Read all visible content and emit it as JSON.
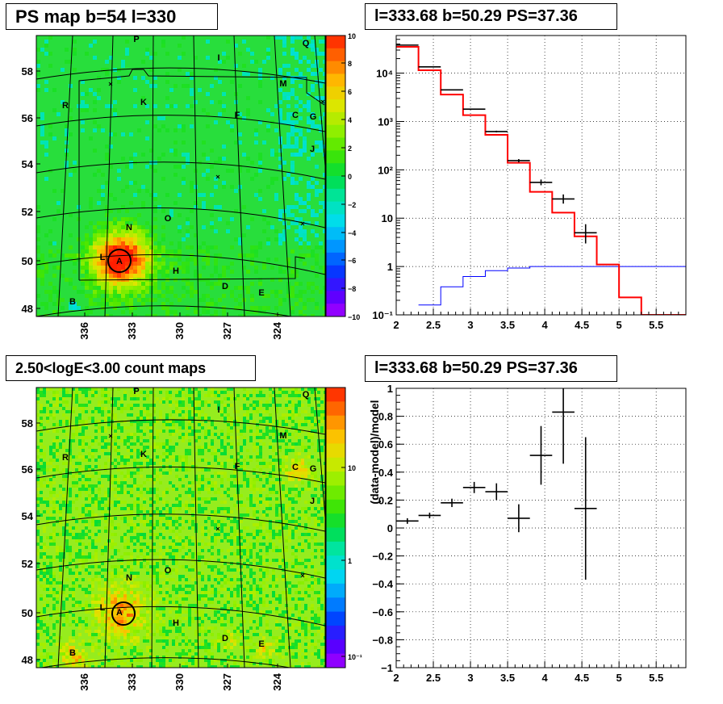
{
  "panels": {
    "ps_map": {
      "title": "PS map b=54 l=330"
    },
    "count_map": {
      "title": "2.50<logE<3.00 count maps"
    },
    "spectrum": {
      "title": "l=333.68 b=50.29 PS=37.36"
    },
    "residual": {
      "title": "l=333.68 b=50.29 PS=37.36"
    }
  },
  "chart_data": [
    {
      "type": "heatmap",
      "name": "ps_map",
      "title": "PS map b=54 l=330",
      "x_ticks": [
        "336",
        "333",
        "330",
        "327",
        "324"
      ],
      "y_ticks": [
        "48",
        "50",
        "52",
        "54",
        "56",
        "58"
      ],
      "colorbar": {
        "min": -10,
        "max": 10,
        "ticks": [
          "10",
          "8",
          "6",
          "4",
          "2",
          "0",
          "−2",
          "−4",
          "−6",
          "−8",
          "−10"
        ]
      },
      "sources": [
        {
          "label": "P"
        },
        {
          "label": "Q"
        },
        {
          "label": "I"
        },
        {
          "label": "M"
        },
        {
          "label": "R"
        },
        {
          "label": "K"
        },
        {
          "label": "F"
        },
        {
          "label": "C"
        },
        {
          "label": "G"
        },
        {
          "label": "J"
        },
        {
          "label": "N"
        },
        {
          "label": "O"
        },
        {
          "label": "L"
        },
        {
          "label": "A"
        },
        {
          "label": "H"
        },
        {
          "label": "D"
        },
        {
          "label": "E"
        },
        {
          "label": "B"
        }
      ]
    },
    {
      "type": "heatmap",
      "name": "count_map",
      "title": "2.50<logE<3.00 count maps",
      "x_ticks": [
        "336",
        "333",
        "330",
        "327",
        "324"
      ],
      "y_ticks": [
        "48",
        "50",
        "52",
        "54",
        "56",
        "58"
      ],
      "colorbar": {
        "scale": "log",
        "ticks": [
          "10",
          "1",
          "10⁻¹"
        ]
      },
      "sources": [
        {
          "label": "P"
        },
        {
          "label": "Q"
        },
        {
          "label": "I"
        },
        {
          "label": "M"
        },
        {
          "label": "R"
        },
        {
          "label": "K"
        },
        {
          "label": "F"
        },
        {
          "label": "C"
        },
        {
          "label": "G"
        },
        {
          "label": "J"
        },
        {
          "label": "N"
        },
        {
          "label": "O"
        },
        {
          "label": "L"
        },
        {
          "label": "A"
        },
        {
          "label": "H"
        },
        {
          "label": "D"
        },
        {
          "label": "E"
        },
        {
          "label": "B"
        }
      ]
    },
    {
      "type": "line",
      "name": "spectrum",
      "title": "l=333.68 b=50.29 PS=37.36",
      "xlim": [
        2,
        5.9
      ],
      "ylim": [
        0.1,
        60000
      ],
      "yscale": "log",
      "x_ticks": [
        "2",
        "2.5",
        "3",
        "3.5",
        "4",
        "4.5",
        "5",
        "5.5"
      ],
      "y_ticks": [
        "10⁻¹",
        "1",
        "10",
        "10²",
        "10³",
        "10⁴"
      ],
      "grid": true,
      "data": {
        "x": [
          2.15,
          2.45,
          2.75,
          3.05,
          3.35,
          3.65,
          3.95,
          4.25,
          4.55
        ],
        "y": [
          38000,
          13500,
          4500,
          1800,
          620,
          155,
          55,
          25,
          5
        ],
        "yerr_low": [
          200,
          120,
          70,
          45,
          25,
          12,
          7,
          5,
          2
        ],
        "yerr_high": [
          200,
          120,
          70,
          45,
          25,
          12,
          8,
          6,
          2.5
        ],
        "xerr": 0.15
      },
      "model_red": {
        "edges": [
          2,
          2.3,
          2.6,
          2.9,
          3.2,
          3.5,
          3.8,
          4.1,
          4.4,
          4.7,
          5.0,
          5.3,
          5.9
        ],
        "values": [
          35000,
          11500,
          3600,
          1350,
          530,
          140,
          35,
          13,
          4.2,
          1.1,
          0.23,
          0.09
        ]
      },
      "model_blue": {
        "edges": [
          2.3,
          2.6,
          2.9,
          3.2,
          3.5,
          3.8,
          4.1,
          4.4,
          4.7,
          5.0,
          5.3,
          5.9
        ],
        "values": [
          0.16,
          0.38,
          0.62,
          0.82,
          0.93,
          1.0,
          1.0,
          1.0,
          1.0,
          1.0,
          1.0
        ]
      }
    },
    {
      "type": "scatter",
      "name": "residual",
      "title": "l=333.68 b=50.29 PS=37.36",
      "ylabel": "(data-model)/model",
      "xlim": [
        2,
        5.9
      ],
      "ylim": [
        -1,
        1
      ],
      "x_ticks": [
        "2",
        "2.5",
        "3",
        "3.5",
        "4",
        "4.5",
        "5",
        "5.5"
      ],
      "y_ticks": [
        "−1",
        "−0.8",
        "−0.6",
        "−0.4",
        "−0.2",
        "0",
        "0.2",
        "0.4",
        "0.6",
        "0.8",
        "1"
      ],
      "grid": true,
      "x": [
        2.15,
        2.45,
        2.75,
        3.05,
        3.35,
        3.65,
        3.95,
        4.25,
        4.55
      ],
      "y": [
        0.05,
        0.09,
        0.18,
        0.29,
        0.26,
        0.07,
        0.52,
        0.83,
        0.14
      ],
      "yerr": [
        0.02,
        0.02,
        0.03,
        0.04,
        0.06,
        0.1,
        0.21,
        0.37,
        0.51
      ],
      "xerr": 0.15
    }
  ]
}
